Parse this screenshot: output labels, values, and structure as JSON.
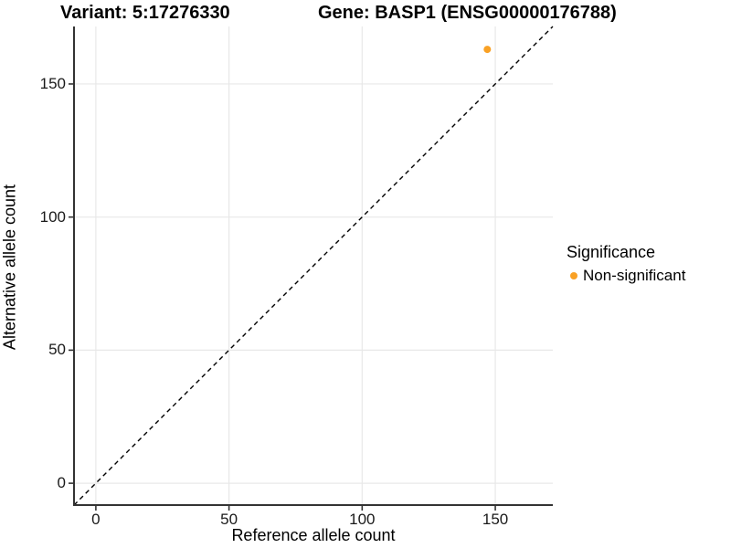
{
  "title": {
    "variant": "Variant: 5:17276330",
    "gene": "Gene: BASP1 (ENSG00000176788)"
  },
  "axes": {
    "x_label": "Reference allele count",
    "y_label": "Alternative allele count"
  },
  "legend": {
    "title": "Significance",
    "items": [
      {
        "label": "Non-significant",
        "color": "#F9A125"
      }
    ]
  },
  "chart_data": {
    "type": "scatter",
    "title": "Variant: 5:17276330   Gene: BASP1 (ENSG00000176788)",
    "xlabel": "Reference allele count",
    "ylabel": "Alternative allele count",
    "xlim": [
      -8.2,
      171.6
    ],
    "ylim": [
      -8.2,
      171.6
    ],
    "x_ticks": [
      0,
      50,
      100,
      150
    ],
    "y_ticks": [
      0,
      50,
      100,
      150
    ],
    "grid": "major",
    "legend_position": "right",
    "series": [
      {
        "name": "Non-significant",
        "color": "#F9A125",
        "points": [
          {
            "x": 147,
            "y": 163
          }
        ]
      }
    ],
    "reference_line": {
      "type": "identity",
      "style": "dashed",
      "color": "#000000"
    },
    "style": {
      "grid_color": "#E8E8E8",
      "axis_color": "#333333",
      "point_radius": 4
    }
  }
}
